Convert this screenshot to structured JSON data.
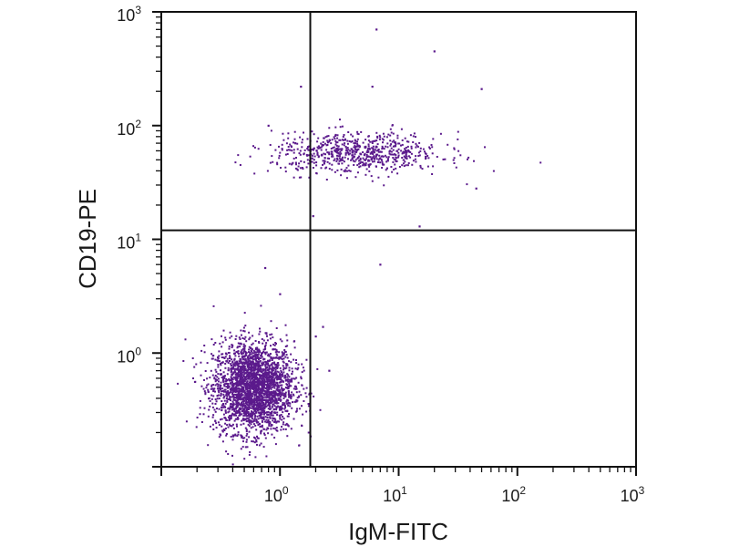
{
  "chart_data": {
    "type": "scatter",
    "title": "",
    "xlabel": "IgM-FITC",
    "ylabel": "CD19-PE",
    "x_scale": "log",
    "y_scale": "log",
    "xlim": [
      0.1,
      1000
    ],
    "ylim": [
      0.1,
      1000
    ],
    "x_ticks": [
      {
        "base": "10",
        "exp": "0",
        "value": 1
      },
      {
        "base": "10",
        "exp": "1",
        "value": 10
      },
      {
        "base": "10",
        "exp": "2",
        "value": 100
      },
      {
        "base": "10",
        "exp": "3",
        "value": 1000
      }
    ],
    "y_ticks": [
      {
        "base": "10",
        "exp": "0",
        "value": 1
      },
      {
        "base": "10",
        "exp": "1",
        "value": 10
      },
      {
        "base": "10",
        "exp": "2",
        "value": 100
      },
      {
        "base": "10",
        "exp": "3",
        "value": 1000
      }
    ],
    "grid": false,
    "point_color": "#5b1a8c",
    "quadrant_gates": {
      "x": 1.8,
      "y": 12
    },
    "populations": [
      {
        "center_x": 0.6,
        "center_y": 0.5,
        "spread_x_log": 0.17,
        "spread_y_log": 0.2,
        "count": 2600
      },
      {
        "center_x": 4.5,
        "center_y": 57,
        "spread_x_log": 0.36,
        "spread_y_log": 0.09,
        "count": 700
      }
    ],
    "outliers": [
      {
        "x": 6.5,
        "y": 700
      },
      {
        "x": 20,
        "y": 450
      },
      {
        "x": 1.5,
        "y": 220
      },
      {
        "x": 6,
        "y": 220
      },
      {
        "x": 50,
        "y": 210
      },
      {
        "x": 0.8,
        "y": 100
      },
      {
        "x": 1.9,
        "y": 16
      },
      {
        "x": 15,
        "y": 13
      },
      {
        "x": 7,
        "y": 6
      },
      {
        "x": 0.75,
        "y": 5.6
      },
      {
        "x": 1.0,
        "y": 3.3
      },
      {
        "x": 2.3,
        "y": 1.7
      },
      {
        "x": 2.6,
        "y": 0.7
      },
      {
        "x": 2.0,
        "y": 1.4
      },
      {
        "x": 45,
        "y": 28
      }
    ]
  }
}
